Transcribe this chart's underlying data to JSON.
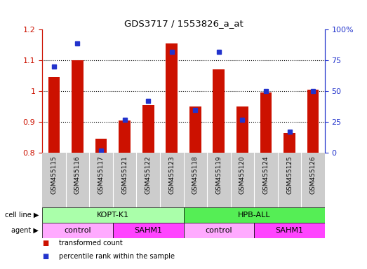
{
  "title": "GDS3717 / 1553826_a_at",
  "categories": [
    "GSM455115",
    "GSM455116",
    "GSM455117",
    "GSM455121",
    "GSM455122",
    "GSM455123",
    "GSM455118",
    "GSM455119",
    "GSM455120",
    "GSM455124",
    "GSM455125",
    "GSM455126"
  ],
  "red_values": [
    1.045,
    1.1,
    0.845,
    0.905,
    0.955,
    1.155,
    0.95,
    1.07,
    0.95,
    0.995,
    0.865,
    1.005
  ],
  "blue_values": [
    0.7,
    0.89,
    0.02,
    0.27,
    0.42,
    0.82,
    0.35,
    0.82,
    0.27,
    0.5,
    0.17,
    0.5
  ],
  "ylim_left": [
    0.8,
    1.2
  ],
  "ylim_right": [
    0,
    100
  ],
  "cell_line_labels": [
    "KOPT-K1",
    "HPB-ALL"
  ],
  "cell_line_colors": [
    "#AAFFAA",
    "#55EE55"
  ],
  "agent_labels": [
    "control",
    "SAHM1",
    "control",
    "SAHM1"
  ],
  "agent_colors": [
    "#FFAAFF",
    "#FF44FF",
    "#FFAAFF",
    "#FF44FF"
  ],
  "red_color": "#CC1100",
  "blue_color": "#2233CC",
  "tick_bg_color": "#CCCCCC",
  "legend_red": "transformed count",
  "legend_blue": "percentile rank within the sample",
  "cell_line_row_label": "cell line",
  "agent_row_label": "agent"
}
